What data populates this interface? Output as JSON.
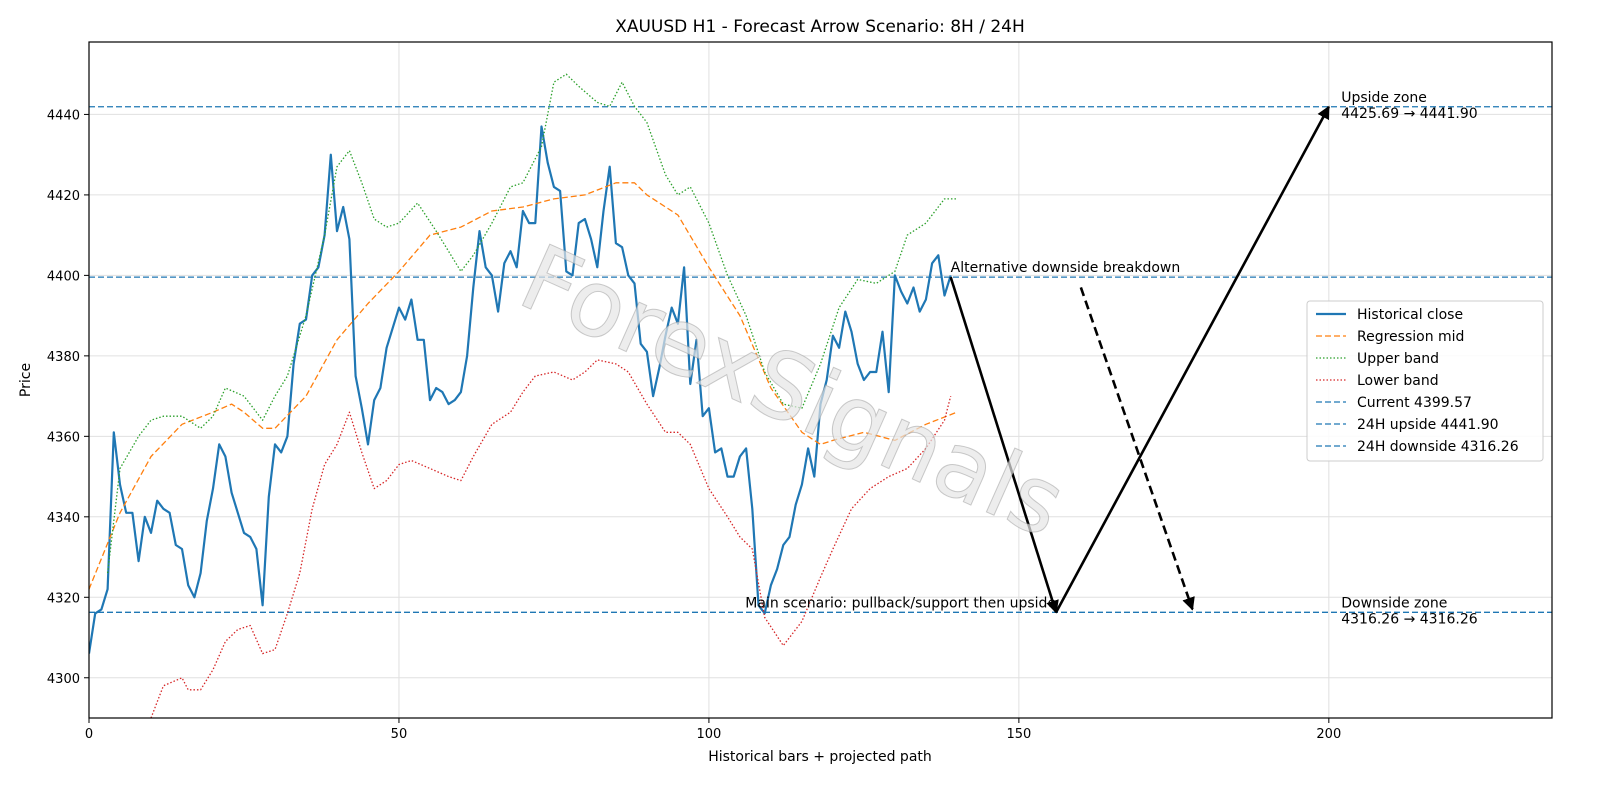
{
  "chart_data": {
    "type": "line",
    "title": "XAUUSD H1 - Forecast Arrow Scenario: 8H / 24H",
    "xlabel": "Historical bars + projected path",
    "ylabel": "Price",
    "xlim": [
      0,
      236
    ],
    "ylim": [
      4290,
      4458
    ],
    "xticks": [
      0,
      50,
      100,
      150,
      200
    ],
    "yticks": [
      4300,
      4320,
      4340,
      4360,
      4380,
      4400,
      4420,
      4440
    ],
    "grid": true,
    "legend_position": "right",
    "series": [
      {
        "name": "Historical close",
        "style": "solid",
        "color": "#1f77b4",
        "x": [
          0,
          1,
          2,
          3,
          4,
          5,
          6,
          7,
          8,
          9,
          10,
          11,
          12,
          13,
          14,
          15,
          16,
          17,
          18,
          19,
          20,
          21,
          22,
          23,
          24,
          25,
          26,
          27,
          28,
          29,
          30,
          31,
          32,
          33,
          34,
          35,
          36,
          37,
          38,
          39,
          40,
          41,
          42,
          43,
          44,
          45,
          46,
          47,
          48,
          49,
          50,
          51,
          52,
          53,
          54,
          55,
          56,
          57,
          58,
          59,
          60,
          61,
          62,
          63,
          64,
          65,
          66,
          67,
          68,
          69,
          70,
          71,
          72,
          73,
          74,
          75,
          76,
          77,
          78,
          79,
          80,
          81,
          82,
          83,
          84,
          85,
          86,
          87,
          88,
          89,
          90,
          91,
          92,
          93,
          94,
          95,
          96,
          97,
          98,
          99,
          100,
          101,
          102,
          103,
          104,
          105,
          106,
          107,
          108,
          109,
          110,
          111,
          112,
          113,
          114,
          115,
          116,
          117,
          118,
          119,
          120,
          121,
          122,
          123,
          124,
          125,
          126,
          127,
          128,
          129,
          130,
          131,
          132,
          133,
          134,
          135,
          136,
          137,
          138,
          139
        ],
        "y": [
          4306,
          4316,
          4317,
          4322,
          4361,
          4348,
          4341,
          4341,
          4329,
          4340,
          4336,
          4344,
          4342,
          4341,
          4333,
          4332,
          4323,
          4320,
          4326,
          4339,
          4347,
          4358,
          4355,
          4346,
          4341,
          4336,
          4335,
          4332,
          4318,
          4345,
          4358,
          4356,
          4360,
          4378,
          4388,
          4389,
          4400,
          4402,
          4410,
          4430,
          4411,
          4417,
          4409,
          4375,
          4367,
          4358,
          4369,
          4372,
          4382,
          4387,
          4392,
          4389,
          4394,
          4384,
          4384,
          4369,
          4372,
          4371,
          4368,
          4369,
          4371,
          4380,
          4397,
          4411,
          4402,
          4400,
          4391,
          4403,
          4406,
          4402,
          4416,
          4413,
          4413,
          4437,
          4428,
          4422,
          4421,
          4401,
          4400,
          4413,
          4414,
          4409,
          4402,
          4416,
          4427,
          4408,
          4407,
          4400,
          4398,
          4383,
          4381,
          4370,
          4377,
          4385,
          4392,
          4388,
          4402,
          4373,
          4384,
          4365,
          4367,
          4356,
          4357,
          4350,
          4350,
          4355,
          4357,
          4342,
          4318,
          4316,
          4323,
          4327,
          4333,
          4335,
          4343,
          4348,
          4357,
          4350,
          4368,
          4374,
          4385,
          4382,
          4391,
          4386,
          4378,
          4374,
          4376,
          4376,
          4386,
          4371,
          4400,
          4396,
          4393,
          4397,
          4391,
          4394,
          4403,
          4405,
          4395,
          4400
        ]
      },
      {
        "name": "Regression mid",
        "style": "dashed",
        "color": "#ff7f0e",
        "x": [
          0,
          5,
          10,
          15,
          20,
          23,
          25,
          28,
          30,
          35,
          40,
          45,
          50,
          55,
          60,
          65,
          70,
          75,
          80,
          85,
          88,
          90,
          95,
          100,
          105,
          110,
          115,
          118,
          120,
          125,
          130,
          135,
          140
        ],
        "y": [
          4322,
          4341,
          4355,
          4363,
          4366,
          4368,
          4366,
          4362,
          4362,
          4370,
          4384,
          4393,
          4401,
          4410,
          4412,
          4416,
          4417,
          4419,
          4420,
          4423,
          4423,
          4420,
          4415,
          4402,
          4390,
          4372,
          4361,
          4358,
          4359,
          4361,
          4359,
          4363,
          4366
        ]
      },
      {
        "name": "Upper band",
        "style": "dotted",
        "color": "#2ca02c",
        "x": [
          3,
          5,
          8,
          10,
          12,
          15,
          18,
          20,
          22,
          25,
          28,
          30,
          32,
          35,
          38,
          40,
          42,
          44,
          46,
          48,
          50,
          53,
          56,
          60,
          62,
          65,
          68,
          70,
          73,
          75,
          77,
          79,
          82,
          84,
          86,
          88,
          90,
          93,
          95,
          97,
          100,
          103,
          106,
          109,
          112,
          115,
          118,
          121,
          124,
          127,
          130,
          132,
          135,
          138,
          140
        ],
        "y": [
          4326,
          4352,
          4360,
          4364,
          4365,
          4365,
          4362,
          4365,
          4372,
          4370,
          4364,
          4370,
          4375,
          4390,
          4410,
          4427,
          4431,
          4423,
          4414,
          4412,
          4413,
          4418,
          4411,
          4401,
          4405,
          4413,
          4422,
          4423,
          4432,
          4448,
          4450,
          4447,
          4443,
          4442,
          4448,
          4442,
          4438,
          4425,
          4420,
          4422,
          4413,
          4400,
          4390,
          4376,
          4368,
          4367,
          4378,
          4392,
          4399,
          4398,
          4401,
          4410,
          4413,
          4419,
          4419
        ]
      },
      {
        "name": "Lower band",
        "style": "dotted",
        "color": "#d62728",
        "x": [
          10,
          12,
          15,
          16,
          18,
          20,
          22,
          24,
          26,
          28,
          30,
          32,
          34,
          36,
          38,
          40,
          42,
          44,
          46,
          48,
          50,
          52,
          55,
          58,
          60,
          62,
          65,
          68,
          70,
          72,
          75,
          78,
          80,
          82,
          85,
          87,
          90,
          93,
          95,
          97,
          100,
          103,
          105,
          107,
          109,
          112,
          115,
          118,
          120,
          123,
          126,
          129,
          132,
          135,
          138,
          139
        ],
        "y": [
          4290,
          4298,
          4300,
          4297,
          4297,
          4302,
          4309,
          4312,
          4313,
          4306,
          4307,
          4316,
          4326,
          4342,
          4353,
          4358,
          4366,
          4356,
          4347,
          4349,
          4353,
          4354,
          4352,
          4350,
          4349,
          4355,
          4363,
          4366,
          4371,
          4375,
          4376,
          4374,
          4376,
          4379,
          4378,
          4376,
          4368,
          4361,
          4361,
          4358,
          4347,
          4340,
          4335,
          4332,
          4315,
          4308,
          4314,
          4325,
          4332,
          4342,
          4347,
          4350,
          4352,
          4357,
          4364,
          4370
        ]
      }
    ],
    "hlines": [
      {
        "name": "Current 4399.57",
        "y": 4399.57,
        "style": "dashed",
        "color": "#1f77b4"
      },
      {
        "name": "24H upside 4441.90",
        "y": 4441.9,
        "style": "dashed",
        "color": "#1f77b4"
      },
      {
        "name": "24H downside 4316.26",
        "y": 4316.26,
        "style": "dashed",
        "color": "#1f77b4"
      }
    ],
    "arrows": [
      {
        "from": [
          139,
          4399.57
        ],
        "to": [
          156,
          4316.26
        ],
        "style": "solid"
      },
      {
        "from": [
          156,
          4316.26
        ],
        "to": [
          200,
          4441.9
        ],
        "style": "solid"
      },
      {
        "from": [
          160,
          4397
        ],
        "to": [
          178,
          4317
        ],
        "style": "dashed"
      }
    ],
    "annotations": [
      {
        "text": "Alternative downside breakdown",
        "x": 139,
        "y": 4399.57,
        "anchor": "start"
      },
      {
        "text": "Main scenario: pullback/support then upside",
        "x": 156,
        "y": 4316.26,
        "anchor": "end"
      },
      {
        "text": "Upside zone",
        "text2": "4425.69 → 4441.90",
        "x": 202,
        "y": 4441.9,
        "anchor": "start"
      },
      {
        "text": "Downside zone",
        "text2": "4316.26 → 4316.26",
        "x": 202,
        "y": 4316.26,
        "anchor": "start"
      }
    ],
    "watermark": "ForexSignals"
  }
}
